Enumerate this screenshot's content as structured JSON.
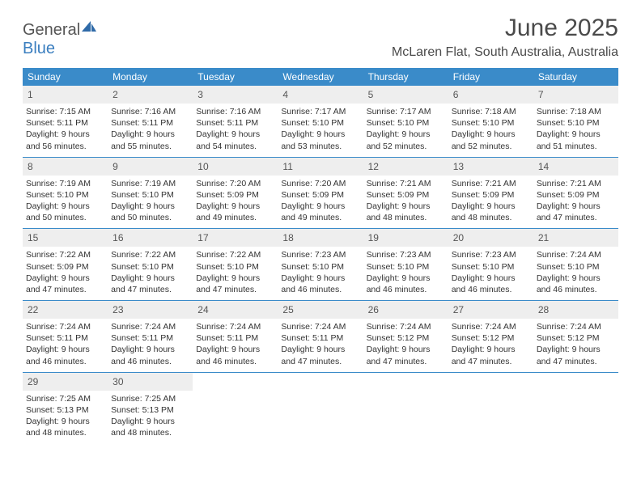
{
  "brand": {
    "part1": "General",
    "part2": "Blue"
  },
  "title": "June 2025",
  "subtitle": "McLaren Flat, South Australia, Australia",
  "colors": {
    "header_bg": "#3a8bc9",
    "daynum_bg": "#eeeeee",
    "rule": "#3a8bc9",
    "text": "#333333",
    "brand_gray": "#555555",
    "brand_blue": "#3a7ebf"
  },
  "weekdays": [
    "Sunday",
    "Monday",
    "Tuesday",
    "Wednesday",
    "Thursday",
    "Friday",
    "Saturday"
  ],
  "weeks": [
    [
      {
        "n": "1",
        "sr": "Sunrise: 7:15 AM",
        "ss": "Sunset: 5:11 PM",
        "d1": "Daylight: 9 hours",
        "d2": "and 56 minutes."
      },
      {
        "n": "2",
        "sr": "Sunrise: 7:16 AM",
        "ss": "Sunset: 5:11 PM",
        "d1": "Daylight: 9 hours",
        "d2": "and 55 minutes."
      },
      {
        "n": "3",
        "sr": "Sunrise: 7:16 AM",
        "ss": "Sunset: 5:11 PM",
        "d1": "Daylight: 9 hours",
        "d2": "and 54 minutes."
      },
      {
        "n": "4",
        "sr": "Sunrise: 7:17 AM",
        "ss": "Sunset: 5:10 PM",
        "d1": "Daylight: 9 hours",
        "d2": "and 53 minutes."
      },
      {
        "n": "5",
        "sr": "Sunrise: 7:17 AM",
        "ss": "Sunset: 5:10 PM",
        "d1": "Daylight: 9 hours",
        "d2": "and 52 minutes."
      },
      {
        "n": "6",
        "sr": "Sunrise: 7:18 AM",
        "ss": "Sunset: 5:10 PM",
        "d1": "Daylight: 9 hours",
        "d2": "and 52 minutes."
      },
      {
        "n": "7",
        "sr": "Sunrise: 7:18 AM",
        "ss": "Sunset: 5:10 PM",
        "d1": "Daylight: 9 hours",
        "d2": "and 51 minutes."
      }
    ],
    [
      {
        "n": "8",
        "sr": "Sunrise: 7:19 AM",
        "ss": "Sunset: 5:10 PM",
        "d1": "Daylight: 9 hours",
        "d2": "and 50 minutes."
      },
      {
        "n": "9",
        "sr": "Sunrise: 7:19 AM",
        "ss": "Sunset: 5:10 PM",
        "d1": "Daylight: 9 hours",
        "d2": "and 50 minutes."
      },
      {
        "n": "10",
        "sr": "Sunrise: 7:20 AM",
        "ss": "Sunset: 5:09 PM",
        "d1": "Daylight: 9 hours",
        "d2": "and 49 minutes."
      },
      {
        "n": "11",
        "sr": "Sunrise: 7:20 AM",
        "ss": "Sunset: 5:09 PM",
        "d1": "Daylight: 9 hours",
        "d2": "and 49 minutes."
      },
      {
        "n": "12",
        "sr": "Sunrise: 7:21 AM",
        "ss": "Sunset: 5:09 PM",
        "d1": "Daylight: 9 hours",
        "d2": "and 48 minutes."
      },
      {
        "n": "13",
        "sr": "Sunrise: 7:21 AM",
        "ss": "Sunset: 5:09 PM",
        "d1": "Daylight: 9 hours",
        "d2": "and 48 minutes."
      },
      {
        "n": "14",
        "sr": "Sunrise: 7:21 AM",
        "ss": "Sunset: 5:09 PM",
        "d1": "Daylight: 9 hours",
        "d2": "and 47 minutes."
      }
    ],
    [
      {
        "n": "15",
        "sr": "Sunrise: 7:22 AM",
        "ss": "Sunset: 5:09 PM",
        "d1": "Daylight: 9 hours",
        "d2": "and 47 minutes."
      },
      {
        "n": "16",
        "sr": "Sunrise: 7:22 AM",
        "ss": "Sunset: 5:10 PM",
        "d1": "Daylight: 9 hours",
        "d2": "and 47 minutes."
      },
      {
        "n": "17",
        "sr": "Sunrise: 7:22 AM",
        "ss": "Sunset: 5:10 PM",
        "d1": "Daylight: 9 hours",
        "d2": "and 47 minutes."
      },
      {
        "n": "18",
        "sr": "Sunrise: 7:23 AM",
        "ss": "Sunset: 5:10 PM",
        "d1": "Daylight: 9 hours",
        "d2": "and 46 minutes."
      },
      {
        "n": "19",
        "sr": "Sunrise: 7:23 AM",
        "ss": "Sunset: 5:10 PM",
        "d1": "Daylight: 9 hours",
        "d2": "and 46 minutes."
      },
      {
        "n": "20",
        "sr": "Sunrise: 7:23 AM",
        "ss": "Sunset: 5:10 PM",
        "d1": "Daylight: 9 hours",
        "d2": "and 46 minutes."
      },
      {
        "n": "21",
        "sr": "Sunrise: 7:24 AM",
        "ss": "Sunset: 5:10 PM",
        "d1": "Daylight: 9 hours",
        "d2": "and 46 minutes."
      }
    ],
    [
      {
        "n": "22",
        "sr": "Sunrise: 7:24 AM",
        "ss": "Sunset: 5:11 PM",
        "d1": "Daylight: 9 hours",
        "d2": "and 46 minutes."
      },
      {
        "n": "23",
        "sr": "Sunrise: 7:24 AM",
        "ss": "Sunset: 5:11 PM",
        "d1": "Daylight: 9 hours",
        "d2": "and 46 minutes."
      },
      {
        "n": "24",
        "sr": "Sunrise: 7:24 AM",
        "ss": "Sunset: 5:11 PM",
        "d1": "Daylight: 9 hours",
        "d2": "and 46 minutes."
      },
      {
        "n": "25",
        "sr": "Sunrise: 7:24 AM",
        "ss": "Sunset: 5:11 PM",
        "d1": "Daylight: 9 hours",
        "d2": "and 47 minutes."
      },
      {
        "n": "26",
        "sr": "Sunrise: 7:24 AM",
        "ss": "Sunset: 5:12 PM",
        "d1": "Daylight: 9 hours",
        "d2": "and 47 minutes."
      },
      {
        "n": "27",
        "sr": "Sunrise: 7:24 AM",
        "ss": "Sunset: 5:12 PM",
        "d1": "Daylight: 9 hours",
        "d2": "and 47 minutes."
      },
      {
        "n": "28",
        "sr": "Sunrise: 7:24 AM",
        "ss": "Sunset: 5:12 PM",
        "d1": "Daylight: 9 hours",
        "d2": "and 47 minutes."
      }
    ],
    [
      {
        "n": "29",
        "sr": "Sunrise: 7:25 AM",
        "ss": "Sunset: 5:13 PM",
        "d1": "Daylight: 9 hours",
        "d2": "and 48 minutes."
      },
      {
        "n": "30",
        "sr": "Sunrise: 7:25 AM",
        "ss": "Sunset: 5:13 PM",
        "d1": "Daylight: 9 hours",
        "d2": "and 48 minutes."
      },
      {
        "empty": true
      },
      {
        "empty": true
      },
      {
        "empty": true
      },
      {
        "empty": true
      },
      {
        "empty": true
      }
    ]
  ]
}
